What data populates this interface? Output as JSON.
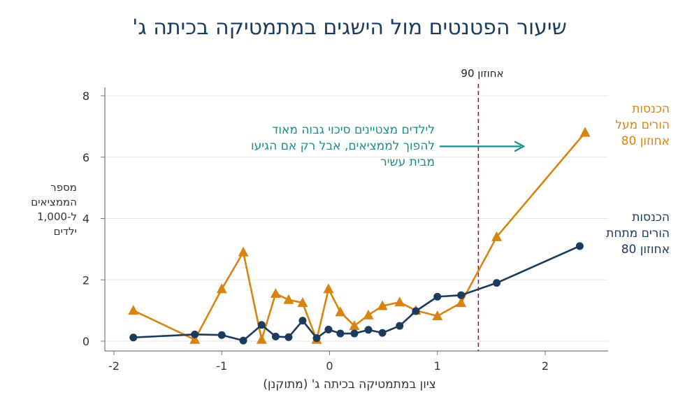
{
  "chart_data": {
    "type": "line",
    "title": "שיעור הפטנטים מול הישגים במתמטיקה בכיתה ג'",
    "xlabel": "ציון במתמטיקה בכיתה ג' (מתוקנן)",
    "ylabel": "מספר הממציאים ל-1,000 ילדים",
    "xlim": [
      -2.1,
      2.55
    ],
    "ylim": [
      -0.3,
      8.5
    ],
    "x_ticks": [
      "-2",
      "-1",
      "0",
      "1",
      "2"
    ],
    "x_tick_values": [
      -2,
      -1,
      0,
      1,
      2
    ],
    "y_ticks": [
      "0",
      "2",
      "4",
      "6",
      "8"
    ],
    "y_tick_values": [
      0,
      2,
      4,
      6,
      8
    ],
    "grid": "horizontal",
    "series": [
      {
        "name": "הכנסות הורים מעל אחוזון 80",
        "color": "#d98411",
        "marker": "triangle",
        "x": [
          -1.82,
          -1.25,
          -1.0,
          -0.8,
          -0.63,
          -0.5,
          -0.38,
          -0.25,
          -0.12,
          -0.01,
          0.1,
          0.23,
          0.36,
          0.49,
          0.65,
          0.8,
          1.0,
          1.22,
          1.55,
          2.37
        ],
        "y": [
          1.0,
          0.05,
          1.7,
          2.9,
          0.05,
          1.55,
          1.35,
          1.25,
          0.05,
          1.7,
          0.95,
          0.5,
          0.85,
          1.15,
          1.27,
          1.0,
          0.82,
          1.25,
          3.4,
          6.8
        ]
      },
      {
        "name": "הכנסות הורים מתחת אחוזון 80",
        "color": "#1b3a5c",
        "marker": "circle",
        "x": [
          -1.82,
          -1.25,
          -1.0,
          -0.8,
          -0.63,
          -0.5,
          -0.38,
          -0.25,
          -0.12,
          -0.01,
          0.1,
          0.23,
          0.36,
          0.49,
          0.65,
          0.8,
          1.0,
          1.22,
          1.55,
          2.32
        ],
        "y": [
          0.12,
          0.22,
          0.2,
          0.02,
          0.53,
          0.15,
          0.13,
          0.67,
          0.1,
          0.38,
          0.25,
          0.25,
          0.37,
          0.27,
          0.5,
          0.98,
          1.45,
          1.5,
          1.9,
          3.1
        ]
      }
    ],
    "vline": {
      "x": 1.38,
      "label": "אחוזון 90",
      "color": "#7a1f2b"
    },
    "annotation": {
      "text": "לילדים מצטיינים סיכוי גבוה מאוד\nלהפוך לממציאים, אבל רק אם הגיעו\nמבית עשיר",
      "color": "#1a8d8a",
      "arrow_from_x": 1.02,
      "arrow_to_x": 1.8,
      "arrow_y": 6.35
    },
    "legend_labels": {
      "top": "הכנסות\nהורים מעל\nאחוזון 80",
      "bottom": "הכנסות\nהורים מתחת\nאחוזון 80"
    },
    "ylabel_display": "מספר\nהממציאים\nל-1,000\nילדים"
  }
}
